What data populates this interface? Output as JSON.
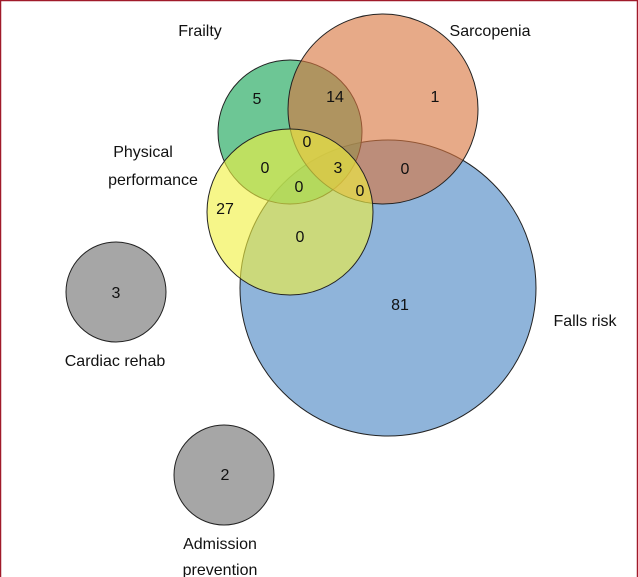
{
  "sets": [
    {
      "label": [
        "Frailty"
      ]
    },
    {
      "label": [
        "Sarcopenia"
      ]
    },
    {
      "label": [
        "Physical",
        "performance"
      ]
    },
    {
      "label": [
        "Falls risk"
      ]
    },
    {
      "label": [
        "Cardiac rehab"
      ]
    },
    {
      "label": [
        "Admission",
        "prevention"
      ]
    }
  ],
  "regions": [
    "5",
    "14",
    "1",
    "0",
    "0",
    "3",
    "0",
    "0",
    "0",
    "27",
    "0",
    "81",
    "3",
    "2"
  ]
}
